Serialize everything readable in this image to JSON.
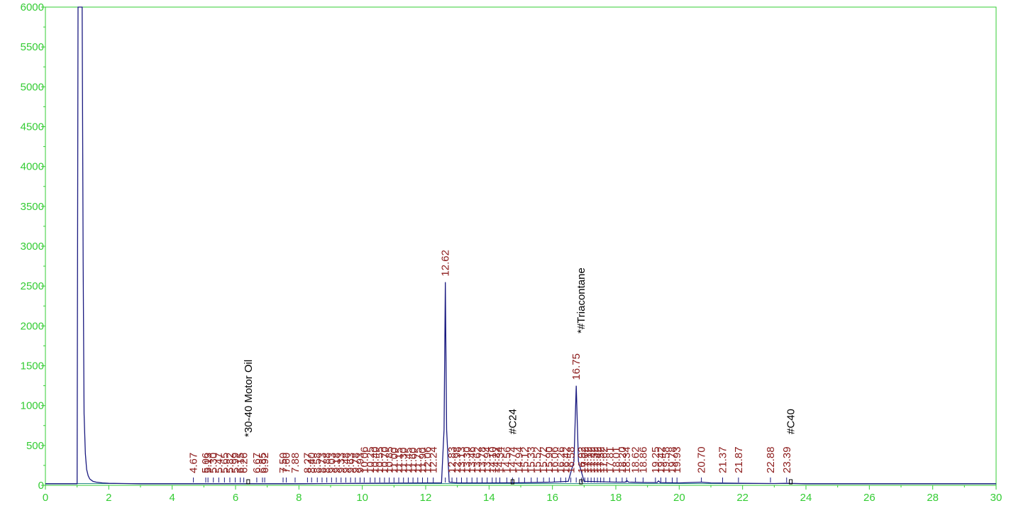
{
  "colors": {
    "axis": "#33cc33",
    "trace": "#1a1a80",
    "peak_label": "#8b1a1a",
    "compound_label": "#000000"
  },
  "chart_data": {
    "type": "line",
    "title": "",
    "xlabel": "",
    "ylabel": "",
    "xlim": [
      0,
      30
    ],
    "ylim": [
      0,
      6000
    ],
    "x_ticks": [
      "0",
      "2",
      "4",
      "6",
      "8",
      "10",
      "12",
      "14",
      "16",
      "18",
      "20",
      "22",
      "24",
      "26",
      "28",
      "30"
    ],
    "y_ticks": [
      "0",
      "500",
      "1000",
      "1500",
      "2000",
      "2500",
      "3000",
      "3500",
      "4000",
      "4500",
      "5000",
      "5500",
      "6000"
    ],
    "series": [
      {
        "x": [
          0,
          1.0,
          1.03,
          1.06,
          1.1,
          1.13,
          1.16,
          1.19,
          1.22,
          1.26,
          1.3,
          1.35,
          1.4,
          1.5,
          1.6,
          1.8,
          2.0,
          2.5,
          3.0,
          4.0,
          5.0,
          6.0,
          7.0,
          8.0,
          9.0,
          10.0,
          11.0,
          12.0,
          12.5,
          12.58,
          12.62,
          12.66,
          12.74,
          13.0,
          14.0,
          15.0,
          16.0,
          16.5,
          16.68,
          16.75,
          16.82,
          17.0,
          18.0,
          18.3,
          18.35,
          18.4,
          19.0,
          19.3,
          19.35,
          19.4,
          20.0,
          20.7,
          21.0,
          22.0,
          23.0,
          23.39,
          24.0,
          26.0,
          28.0,
          30.0
        ],
        "values": [
          20,
          20,
          6000,
          6000,
          6000,
          6000,
          6000,
          2800,
          900,
          400,
          200,
          120,
          80,
          50,
          40,
          30,
          25,
          22,
          20,
          20,
          20,
          20,
          20,
          20,
          22,
          25,
          28,
          30,
          30,
          700,
          2550,
          700,
          40,
          30,
          30,
          32,
          40,
          50,
          300,
          1250,
          300,
          50,
          40,
          40,
          60,
          40,
          35,
          35,
          55,
          35,
          30,
          40,
          30,
          25,
          22,
          25,
          20,
          20,
          20,
          20
        ]
      }
    ],
    "peaks": [
      {
        "rt": 4.67,
        "label": "4.67"
      },
      {
        "rt": 5.06,
        "label": "5.06"
      },
      {
        "rt": 5.13,
        "label": "5.13"
      },
      {
        "rt": 5.3,
        "label": "5.30"
      },
      {
        "rt": 5.47,
        "label": "5.47"
      },
      {
        "rt": 5.65,
        "label": "5.65"
      },
      {
        "rt": 5.82,
        "label": "5.82"
      },
      {
        "rt": 5.99,
        "label": "5.99"
      },
      {
        "rt": 6.15,
        "label": "6.15"
      },
      {
        "rt": 6.26,
        "label": "6.26"
      },
      {
        "rt": 6.67,
        "label": "6.67"
      },
      {
        "rt": 6.85,
        "label": "6.85"
      },
      {
        "rt": 6.92,
        "label": "6.92"
      },
      {
        "rt": 7.5,
        "label": "7.50"
      },
      {
        "rt": 7.6,
        "label": "7.60"
      },
      {
        "rt": 7.88,
        "label": "7.88"
      },
      {
        "rt": 8.27,
        "label": "8.27"
      },
      {
        "rt": 8.4,
        "label": "8.40"
      },
      {
        "rt": 8.58,
        "label": "8.58"
      },
      {
        "rt": 8.73,
        "label": "8.73"
      },
      {
        "rt": 8.88,
        "label": "8.88"
      },
      {
        "rt": 9.03,
        "label": "9.03"
      },
      {
        "rt": 9.18,
        "label": "9.18"
      },
      {
        "rt": 9.33,
        "label": "9.33"
      },
      {
        "rt": 9.48,
        "label": "9.48"
      },
      {
        "rt": 9.63,
        "label": "9.63"
      },
      {
        "rt": 9.78,
        "label": "9.78"
      },
      {
        "rt": 9.93,
        "label": "9.93"
      },
      {
        "rt": 10.06,
        "label": "10.06"
      },
      {
        "rt": 10.25,
        "label": "10.25"
      },
      {
        "rt": 10.4,
        "label": "10.40"
      },
      {
        "rt": 10.55,
        "label": "10.55"
      },
      {
        "rt": 10.7,
        "label": "10.70"
      },
      {
        "rt": 10.85,
        "label": "10.85"
      },
      {
        "rt": 11.0,
        "label": "11.00"
      },
      {
        "rt": 11.15,
        "label": "11.15"
      },
      {
        "rt": 11.3,
        "label": "11.30"
      },
      {
        "rt": 11.45,
        "label": "11.45"
      },
      {
        "rt": 11.6,
        "label": "11.60"
      },
      {
        "rt": 11.75,
        "label": "11.75"
      },
      {
        "rt": 11.9,
        "label": "11.90"
      },
      {
        "rt": 12.06,
        "label": "12.06"
      },
      {
        "rt": 12.24,
        "label": "12.24"
      },
      {
        "rt": 12.62,
        "label": "12.62"
      },
      {
        "rt": 12.83,
        "label": "12.83"
      },
      {
        "rt": 12.98,
        "label": "12.98"
      },
      {
        "rt": 13.13,
        "label": "13.13"
      },
      {
        "rt": 13.3,
        "label": "13.30"
      },
      {
        "rt": 13.46,
        "label": "13.46"
      },
      {
        "rt": 13.62,
        "label": "13.62"
      },
      {
        "rt": 13.78,
        "label": "13.78"
      },
      {
        "rt": 13.94,
        "label": "13.94"
      },
      {
        "rt": 14.1,
        "label": "14.10"
      },
      {
        "rt": 14.22,
        "label": "14.22"
      },
      {
        "rt": 14.34,
        "label": "14.34"
      },
      {
        "rt": 14.56,
        "label": "14.56"
      },
      {
        "rt": 14.74,
        "label": "14.74"
      },
      {
        "rt": 14.94,
        "label": "14.94"
      },
      {
        "rt": 15.12,
        "label": "15.12"
      },
      {
        "rt": 15.33,
        "label": "15.33"
      },
      {
        "rt": 15.52,
        "label": "15.52"
      },
      {
        "rt": 15.72,
        "label": "15.72"
      },
      {
        "rt": 15.9,
        "label": "15.90"
      },
      {
        "rt": 16.06,
        "label": "16.06"
      },
      {
        "rt": 16.26,
        "label": "16.26"
      },
      {
        "rt": 16.42,
        "label": "16.42"
      },
      {
        "rt": 16.58,
        "label": "16.58"
      },
      {
        "rt": 16.75,
        "label": "16.75"
      },
      {
        "rt": 16.92,
        "label": "16.92"
      },
      {
        "rt": 17.02,
        "label": "17.02"
      },
      {
        "rt": 17.12,
        "label": "17.12"
      },
      {
        "rt": 17.22,
        "label": "17.22"
      },
      {
        "rt": 17.32,
        "label": "17.32"
      },
      {
        "rt": 17.42,
        "label": "17.42"
      },
      {
        "rt": 17.52,
        "label": "17.52"
      },
      {
        "rt": 17.62,
        "label": "17.62"
      },
      {
        "rt": 17.81,
        "label": "17.81"
      },
      {
        "rt": 18.01,
        "label": "18.01"
      },
      {
        "rt": 18.2,
        "label": "18.20"
      },
      {
        "rt": 18.34,
        "label": "18.34"
      },
      {
        "rt": 18.62,
        "label": "18.62"
      },
      {
        "rt": 18.86,
        "label": "18.86"
      },
      {
        "rt": 19.25,
        "label": "19.25"
      },
      {
        "rt": 19.42,
        "label": "19.42"
      },
      {
        "rt": 19.58,
        "label": "19.58"
      },
      {
        "rt": 19.78,
        "label": "19.78"
      },
      {
        "rt": 19.93,
        "label": "19.93"
      },
      {
        "rt": 20.7,
        "label": "20.70"
      },
      {
        "rt": 21.37,
        "label": "21.37"
      },
      {
        "rt": 21.87,
        "label": "21.87"
      },
      {
        "rt": 22.88,
        "label": "22.88"
      },
      {
        "rt": 23.39,
        "label": "23.39"
      }
    ],
    "annotations": [
      {
        "rt": 6.4,
        "label": "*30-40 Motor Oil"
      },
      {
        "rt": 14.74,
        "label": "#C24"
      },
      {
        "rt": 16.9,
        "label": "*#Triacontane"
      },
      {
        "rt": 23.52,
        "label": "#C40"
      }
    ]
  }
}
